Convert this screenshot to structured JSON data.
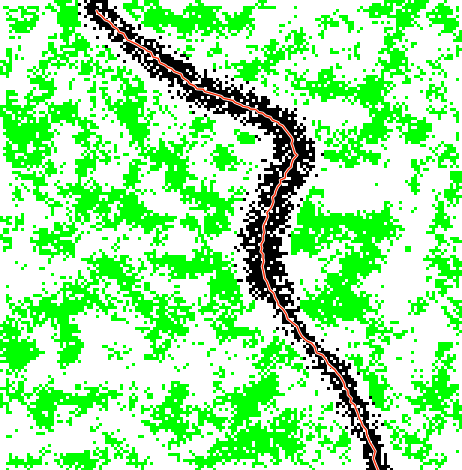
{
  "map": {
    "colors": {
      "background": "#ffffff",
      "vegetation": "#00ff00",
      "corridor": "#000000",
      "path": "#ff2a00",
      "path_outline": "#ffffff"
    },
    "layers": [
      "vegetation-mask",
      "corridor-mask",
      "route-path"
    ],
    "seed": 7
  }
}
